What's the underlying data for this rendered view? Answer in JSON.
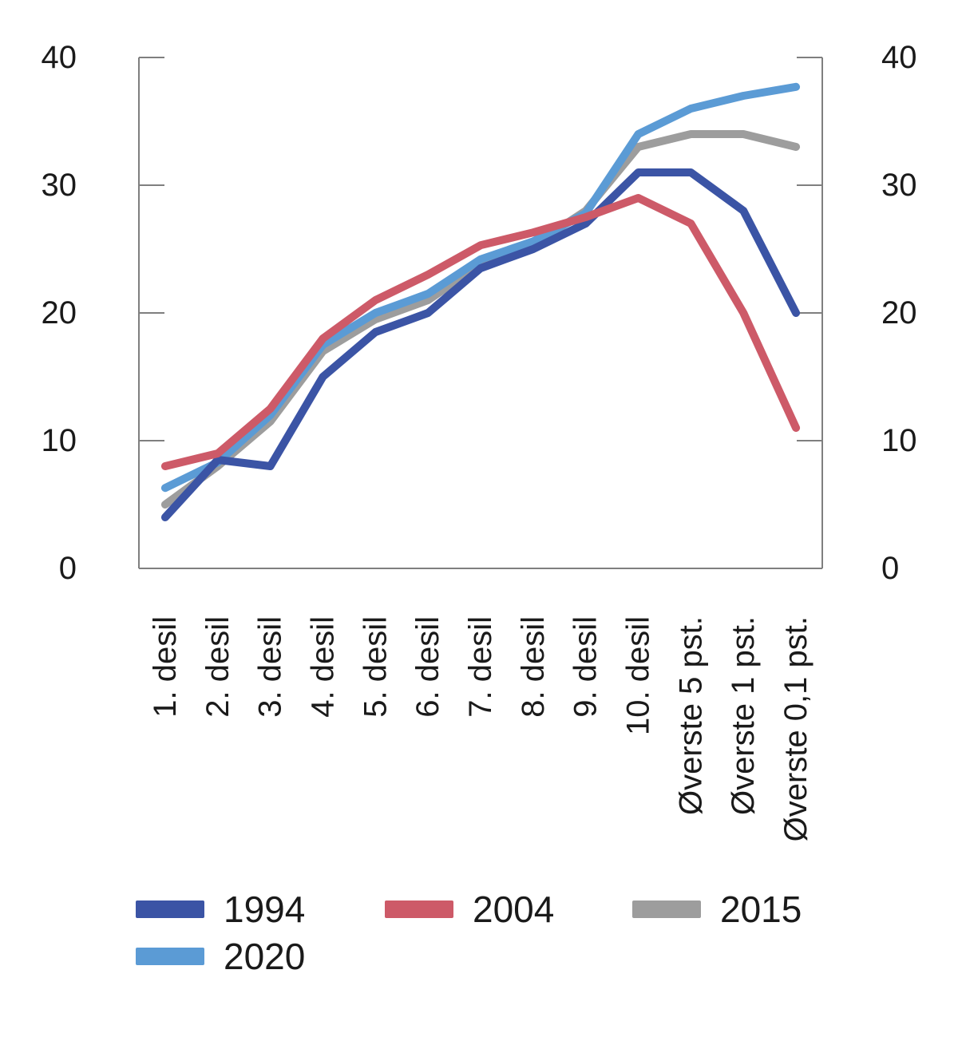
{
  "chart_data": {
    "type": "line",
    "categories": [
      "1. desil",
      "2. desil",
      "3. desil",
      "4. desil",
      "5. desil",
      "6. desil",
      "7. desil",
      "8. desil",
      "9. desil",
      "10. desil",
      "Øverste 5 pst.",
      "Øverste 1 pst.",
      "Øverste 0,1 pst."
    ],
    "series": [
      {
        "name": "1994",
        "color": "#3B54A5",
        "values": [
          4,
          8.5,
          8,
          15,
          18.5,
          20,
          23.5,
          25,
          27,
          31,
          31,
          28,
          20
        ]
      },
      {
        "name": "2004",
        "color": "#CD5A68",
        "values": [
          8,
          9,
          12.5,
          18,
          21,
          23,
          25.3,
          26.3,
          27.5,
          29,
          27,
          20,
          11
        ]
      },
      {
        "name": "2015",
        "color": "#9D9D9D",
        "values": [
          5,
          8,
          11.5,
          17,
          19.5,
          21,
          23.8,
          25.3,
          28,
          33,
          34,
          34,
          33
        ]
      },
      {
        "name": "2020",
        "color": "#5B9BD5",
        "values": [
          6.3,
          8.3,
          12,
          17.5,
          20,
          21.5,
          24.2,
          25.6,
          27.8,
          34,
          36,
          37,
          37.7
        ]
      }
    ],
    "title": "",
    "xlabel": "",
    "ylabel": "",
    "ylim": [
      0,
      40
    ],
    "yticks": [
      0,
      10,
      20,
      30,
      40
    ],
    "y_axis_left": true,
    "y_axis_right": true,
    "grid": false,
    "legend_position": "bottom-left",
    "axis_color": "#7F7F7F",
    "text_color": "#1A1A1A"
  }
}
